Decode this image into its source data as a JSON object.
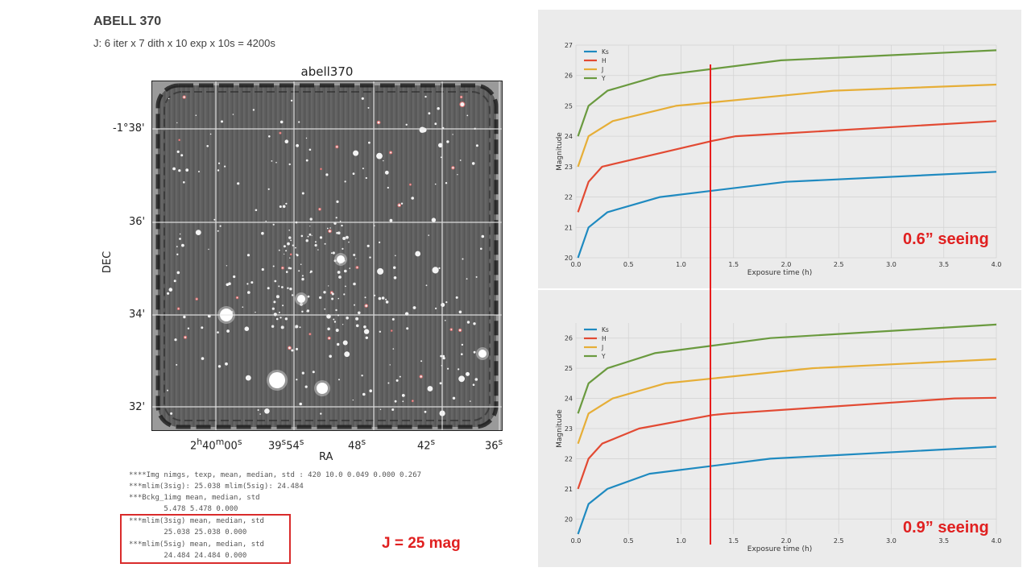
{
  "header": {
    "title": "ABELL 370",
    "subtitle": "J: 6 iter x 7 dith x 10 exp x 10s = 4200s"
  },
  "sky_image": {
    "title": "abell370",
    "xlabel": "RA",
    "ylabel": "DEC",
    "ra_ticks": [
      {
        "h": "2",
        "m": "40",
        "s": "00"
      },
      {
        "h": "",
        "m": "39",
        "s": "54"
      },
      {
        "h": "",
        "m": "",
        "s": "48"
      },
      {
        "h": "",
        "m": "",
        "s": "42"
      },
      {
        "h": "",
        "m": "",
        "s": "36"
      }
    ],
    "dec_ticks": [
      "-1°38'",
      "36'",
      "34'",
      "32'"
    ]
  },
  "log": {
    "lines": [
      "****Img nimgs, texp, mean, median, std : 420 10.0 0.049 0.000 0.267",
      "***mlim(3sig): 25.038 mlim(5sig): 24.484",
      "***Bckg_1img mean, median, std",
      "        5.478 5.478 0.000",
      "***mlim(3sig) mean, median, std",
      "        25.038 25.038 0.000",
      "***mlim(5sig) mean, median, std",
      "        24.484 24.484 0.000"
    ]
  },
  "annotation": {
    "j_mag": "J = 25 mag",
    "seeing_top": "0.6” seeing",
    "seeing_bottom": "0.9” seeing"
  },
  "colors": {
    "Ks": "#1f8ac0",
    "H": "#e24a33",
    "J": "#e6ae37",
    "Y": "#6a9a3f",
    "marker": "#e81d1d",
    "highlight": "#d92b2b"
  },
  "chart_data": [
    {
      "type": "line",
      "xlabel": "Exposure time (h)",
      "ylabel": "Magnitude",
      "xlim": [
        0,
        4
      ],
      "ylim": [
        20,
        27
      ],
      "xticks": [
        "0.0",
        "0.5",
        "1.0",
        "1.5",
        "2.0",
        "2.5",
        "3.0",
        "3.5",
        "4.0"
      ],
      "yticks": [
        "20",
        "21",
        "22",
        "23",
        "24",
        "25",
        "26",
        "27"
      ],
      "grid": true,
      "legend": "top-left",
      "series": [
        {
          "name": "Ks",
          "x": [
            0.02,
            0.12,
            0.3,
            0.8,
            2.0,
            4.0
          ],
          "values": [
            20.0,
            21.0,
            21.5,
            22.0,
            22.5,
            22.83
          ]
        },
        {
          "name": "H",
          "x": [
            0.02,
            0.12,
            0.25,
            1.3,
            1.52,
            4.0
          ],
          "values": [
            21.5,
            22.5,
            23.0,
            23.85,
            24.0,
            24.5
          ]
        },
        {
          "name": "J",
          "x": [
            0.02,
            0.12,
            0.35,
            0.95,
            2.45,
            4.0
          ],
          "values": [
            23.0,
            24.0,
            24.5,
            25.0,
            25.5,
            25.7
          ]
        },
        {
          "name": "Y",
          "x": [
            0.02,
            0.12,
            0.3,
            0.8,
            1.95,
            4.0
          ],
          "values": [
            24.0,
            25.0,
            25.5,
            26.0,
            26.5,
            26.83
          ]
        }
      ]
    },
    {
      "type": "line",
      "xlabel": "Exposure time (h)",
      "ylabel": "Magnitude",
      "xlim": [
        0,
        4
      ],
      "ylim": [
        19.5,
        26.5
      ],
      "xticks": [
        "0.0",
        "0.5",
        "1.0",
        "1.5",
        "2.0",
        "2.5",
        "3.0",
        "3.5",
        "4.0"
      ],
      "yticks": [
        "20",
        "21",
        "22",
        "23",
        "24",
        "25",
        "26"
      ],
      "grid": true,
      "legend": "top-left",
      "series": [
        {
          "name": "Ks",
          "x": [
            0.02,
            0.12,
            0.3,
            0.7,
            1.85,
            4.0
          ],
          "values": [
            19.5,
            20.5,
            21.0,
            21.5,
            22.0,
            22.4
          ]
        },
        {
          "name": "H",
          "x": [
            0.02,
            0.12,
            0.25,
            0.6,
            1.3,
            1.45,
            3.6,
            4.0
          ],
          "values": [
            21.0,
            22.0,
            22.5,
            23.0,
            23.45,
            23.5,
            24.0,
            24.02
          ]
        },
        {
          "name": "J",
          "x": [
            0.02,
            0.12,
            0.35,
            0.85,
            2.25,
            4.0
          ],
          "values": [
            22.5,
            23.5,
            24.0,
            24.5,
            25.0,
            25.3
          ]
        },
        {
          "name": "Y",
          "x": [
            0.02,
            0.12,
            0.3,
            0.75,
            1.85,
            4.0
          ],
          "values": [
            23.5,
            24.5,
            25.0,
            25.5,
            26.0,
            26.45
          ]
        }
      ]
    }
  ]
}
